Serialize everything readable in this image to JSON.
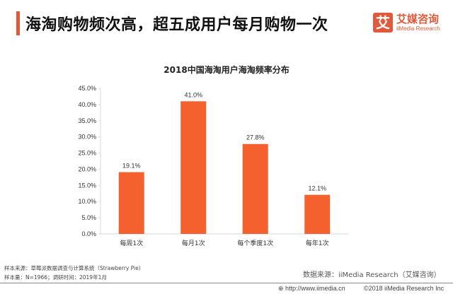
{
  "header": {
    "headline": "海淘购物频次高，超五成用户每月购物一次",
    "accent_color": "#e0593a"
  },
  "logo": {
    "mark": "艾",
    "name_cn": "艾媒咨询",
    "name_en": "iiMedia Research"
  },
  "chart_data": {
    "type": "bar",
    "title": "2018中国海淘用户海淘频率分布",
    "categories": [
      "每周1次",
      "每月1次",
      "每个季度1次",
      "每年1次"
    ],
    "values": [
      19.1,
      41.0,
      27.8,
      12.1
    ],
    "data_labels": [
      "19.1%",
      "41.0%",
      "27.8%",
      "12.1%"
    ],
    "ylim": [
      0,
      45
    ],
    "yticks": [
      0,
      5,
      10,
      15,
      20,
      25,
      30,
      35,
      40,
      45
    ],
    "ytick_labels": [
      "0.0%",
      "5.0%",
      "10.0%",
      "15.0%",
      "20.0%",
      "25.0%",
      "30.0%",
      "35.0%",
      "40.0%",
      "45.0%"
    ],
    "xlabel": "",
    "ylabel": "",
    "grid": false,
    "bar_color": "#f4612f"
  },
  "notes": {
    "line1": "样本来源：草莓派数据调查与计算系统（Strawberry Pie）",
    "line2": "样本量：N=1966；调研时间：2019年1月"
  },
  "source": "数据来源：iiMedia Research（艾媒咨询）",
  "footer": {
    "url": "http://www.iimedia.cn",
    "copyright": "©2018  iiMedia Research  Inc"
  }
}
